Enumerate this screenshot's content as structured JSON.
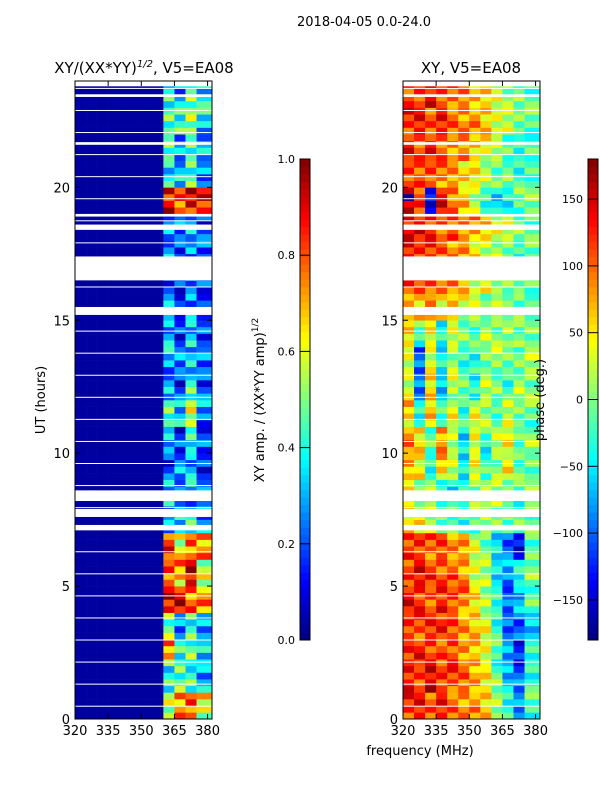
{
  "chart_data": [
    {
      "type": "heatmap",
      "suptitle": "2018-04-05 0.0-24.0",
      "title": "XY/(XX*YY)",
      "title_sup": "1/2",
      "title_suffix": ", V5=EA08",
      "xlabel": "frequency (MHz)",
      "ylabel": "UT (hours)",
      "xlim": [
        320,
        382
      ],
      "ylim": [
        0,
        24
      ],
      "xticks": [
        "320",
        "335",
        "350",
        "365",
        "380"
      ],
      "yticks": [
        "0",
        "5",
        "10",
        "15",
        "20"
      ],
      "x_bins": [
        320,
        325,
        330,
        335,
        340,
        345,
        350,
        355,
        360,
        365,
        370,
        375
      ],
      "colorbar": {
        "label": "XY amp. / (XX*YY amp)",
        "label_sup": "1/2",
        "range": [
          0,
          1
        ],
        "ticks": [
          "0.0",
          "0.2",
          "0.4",
          "0.6",
          "0.8",
          "1.0"
        ]
      },
      "flagged_hours": [
        [
          7.1,
          7.3
        ],
        [
          7.6,
          7.9
        ],
        [
          8.2,
          8.6
        ],
        [
          15.2,
          15.5
        ],
        [
          16.5,
          17.4
        ],
        [
          18.4,
          18.6
        ],
        [
          18.9,
          19.0
        ],
        [
          21.6,
          21.7
        ],
        [
          23.4,
          23.5
        ],
        [
          23.8,
          24.0
        ]
      ],
      "values": [
        [
          0.03,
          0.03,
          0.03,
          0.03,
          0.03,
          0.03,
          0.03,
          0.03,
          0.6,
          0.7,
          0.8,
          0.6
        ],
        [
          0.03,
          0.03,
          0.03,
          0.03,
          0.03,
          0.03,
          0.03,
          0.03,
          0.4,
          0.5,
          0.4,
          0.3
        ],
        [
          0.03,
          0.03,
          0.03,
          0.03,
          0.03,
          0.03,
          0.03,
          0.03,
          0.7,
          0.4,
          0.5,
          0.3
        ],
        [
          0.03,
          0.03,
          0.03,
          0.03,
          0.03,
          0.03,
          0.03,
          0.03,
          0.5,
          0.3,
          0.4,
          0.3
        ],
        [
          0.03,
          0.03,
          0.03,
          0.03,
          0.03,
          0.03,
          0.03,
          0.03,
          0.85,
          0.9,
          0.8,
          0.7
        ],
        [
          0.03,
          0.03,
          0.03,
          0.03,
          0.03,
          0.03,
          0.03,
          0.03,
          0.8,
          0.7,
          0.9,
          0.6
        ],
        [
          0.03,
          0.03,
          0.03,
          0.03,
          0.03,
          0.03,
          0.03,
          0.03,
          0.8,
          0.6,
          0.8,
          0.7
        ],
        [
          0.03,
          0.03,
          0.03,
          0.03,
          0.03,
          0.03,
          0.03,
          0.03,
          0.3,
          0.3,
          0.4,
          0.3
        ],
        [
          0.03,
          0.03,
          0.03,
          0.03,
          0.03,
          0.03,
          0.03,
          0.03,
          0.3,
          0.2,
          0.3,
          0.2
        ],
        [
          0.03,
          0.03,
          0.03,
          0.03,
          0.03,
          0.03,
          0.03,
          0.03,
          0.2,
          0.25,
          0.3,
          0.2
        ],
        [
          0.03,
          0.03,
          0.03,
          0.03,
          0.03,
          0.03,
          0.03,
          0.03,
          0.3,
          0.2,
          0.35,
          0.2
        ],
        [
          0.03,
          0.03,
          0.03,
          0.03,
          0.03,
          0.03,
          0.03,
          0.03,
          0.5,
          0.3,
          0.6,
          0.25
        ],
        [
          0.03,
          0.03,
          0.03,
          0.03,
          0.03,
          0.03,
          0.03,
          0.03,
          0.3,
          0.2,
          0.4,
          0.2
        ],
        [
          0.03,
          0.03,
          0.03,
          0.03,
          0.03,
          0.03,
          0.03,
          0.03,
          0.3,
          0.25,
          0.35,
          0.2
        ],
        [
          0.03,
          0.03,
          0.03,
          0.03,
          0.03,
          0.03,
          0.03,
          0.03,
          0.3,
          0.2,
          0.3,
          0.2
        ],
        [
          0.03,
          0.03,
          0.03,
          0.03,
          0.03,
          0.03,
          0.03,
          0.03,
          0.25,
          0.2,
          0.3,
          0.2
        ],
        [
          0.03,
          0.03,
          0.03,
          0.03,
          0.03,
          0.03,
          0.03,
          0.03,
          0.2,
          0.2,
          0.25,
          0.2
        ],
        [
          0.03,
          0.03,
          0.03,
          0.03,
          0.03,
          0.03,
          0.03,
          0.03,
          0.25,
          0.2,
          0.3,
          0.2
        ],
        [
          0.03,
          0.03,
          0.03,
          0.03,
          0.03,
          0.03,
          0.03,
          0.03,
          0.3,
          0.2,
          0.3,
          0.2
        ],
        [
          0.03,
          0.03,
          0.03,
          0.03,
          0.03,
          0.03,
          0.03,
          0.03,
          0.85,
          0.8,
          0.9,
          0.85
        ],
        [
          0.03,
          0.03,
          0.03,
          0.03,
          0.03,
          0.03,
          0.03,
          0.03,
          0.4,
          0.3,
          0.45,
          0.3
        ],
        [
          0.03,
          0.03,
          0.03,
          0.03,
          0.03,
          0.03,
          0.03,
          0.03,
          0.45,
          0.3,
          0.4,
          0.3
        ],
        [
          0.03,
          0.03,
          0.03,
          0.03,
          0.03,
          0.03,
          0.03,
          0.03,
          0.5,
          0.4,
          0.55,
          0.35
        ],
        [
          0.03,
          0.03,
          0.03,
          0.03,
          0.03,
          0.03,
          0.03,
          0.03,
          0.4,
          0.3,
          0.45,
          0.35
        ]
      ]
    },
    {
      "type": "heatmap",
      "title": "XY, V5=EA08",
      "xlabel": "frequency (MHz)",
      "ylabel": "",
      "xlim": [
        320,
        382
      ],
      "ylim": [
        0,
        24
      ],
      "xticks": [
        "320",
        "335",
        "350",
        "365",
        "380"
      ],
      "yticks": [
        "0",
        "5",
        "10",
        "15",
        "20"
      ],
      "x_bins": [
        320,
        325,
        330,
        335,
        340,
        345,
        350,
        355,
        360,
        365,
        370,
        375
      ],
      "colorbar": {
        "label": "phase (deg.)",
        "range": [
          -180,
          180
        ],
        "ticks": [
          "−150",
          "−100",
          "−50",
          "0",
          "50",
          "100",
          "150"
        ]
      },
      "flagged_hours": [
        [
          7.1,
          7.3
        ],
        [
          7.6,
          7.9
        ],
        [
          8.2,
          8.6
        ],
        [
          15.2,
          15.5
        ],
        [
          16.5,
          17.4
        ],
        [
          18.4,
          18.6
        ],
        [
          18.9,
          19.0
        ],
        [
          21.6,
          21.7
        ],
        [
          23.4,
          23.5
        ],
        [
          23.8,
          24.0
        ]
      ],
      "values": [
        [
          120,
          130,
          110,
          120,
          100,
          90,
          80,
          60,
          20,
          -40,
          -80,
          -20
        ],
        [
          130,
          120,
          140,
          120,
          110,
          100,
          80,
          40,
          0,
          -60,
          -100,
          -30
        ],
        [
          110,
          130,
          120,
          100,
          110,
          90,
          60,
          40,
          -20,
          -80,
          -120,
          -40
        ],
        [
          120,
          110,
          120,
          130,
          100,
          80,
          70,
          30,
          -30,
          -90,
          -110,
          -60
        ],
        [
          130,
          120,
          110,
          120,
          110,
          90,
          50,
          20,
          -40,
          -100,
          -60,
          -20
        ],
        [
          120,
          130,
          120,
          110,
          100,
          80,
          40,
          10,
          -50,
          -80,
          -40,
          10
        ],
        [
          110,
          120,
          100,
          110,
          90,
          70,
          30,
          0,
          -60,
          -100,
          -130,
          -20
        ],
        [
          60,
          40,
          20,
          0,
          -20,
          -30,
          -10,
          10,
          0,
          -20,
          -10,
          0
        ],
        [
          40,
          20,
          0,
          -20,
          -40,
          -20,
          0,
          20,
          10,
          -10,
          -20,
          0
        ],
        [
          80,
          40,
          -30,
          60,
          20,
          -40,
          30,
          -20,
          10,
          40,
          -10,
          0
        ],
        [
          90,
          60,
          -20,
          80,
          30,
          -60,
          40,
          -30,
          20,
          50,
          -20,
          10
        ],
        [
          60,
          -40,
          70,
          -30,
          40,
          -20,
          30,
          10,
          -10,
          20,
          0,
          -10
        ],
        [
          30,
          -80,
          50,
          -60,
          20,
          -10,
          -30,
          10,
          0,
          -20,
          10,
          0
        ],
        [
          20,
          -100,
          40,
          -50,
          10,
          -20,
          -40,
          0,
          10,
          -10,
          0,
          10
        ],
        [
          60,
          -20,
          40,
          -30,
          20,
          0,
          -10,
          10,
          0,
          20,
          -10,
          0
        ],
        [
          80,
          60,
          90,
          40,
          60,
          30,
          20,
          10,
          0,
          10,
          0,
          -10
        ],
        [
          120,
          110,
          100,
          90,
          80,
          60,
          40,
          30,
          20,
          10,
          0,
          -10
        ],
        [
          130,
          120,
          110,
          100,
          90,
          70,
          50,
          30,
          10,
          0,
          -20,
          -10
        ],
        [
          140,
          130,
          120,
          110,
          100,
          90,
          80,
          60,
          40,
          20,
          0,
          -10
        ],
        [
          160,
          120,
          -150,
          140,
          100,
          60,
          20,
          -20,
          -60,
          -40,
          -10,
          0
        ],
        [
          120,
          100,
          110,
          90,
          80,
          60,
          40,
          20,
          0,
          -10,
          -30,
          -10
        ],
        [
          130,
          110,
          120,
          100,
          90,
          80,
          60,
          40,
          20,
          -10,
          -40,
          -20
        ],
        [
          120,
          130,
          110,
          120,
          100,
          90,
          80,
          60,
          40,
          20,
          0,
          -10
        ],
        [
          110,
          120,
          130,
          110,
          100,
          90,
          70,
          50,
          30,
          10,
          -10,
          -20
        ]
      ]
    }
  ]
}
